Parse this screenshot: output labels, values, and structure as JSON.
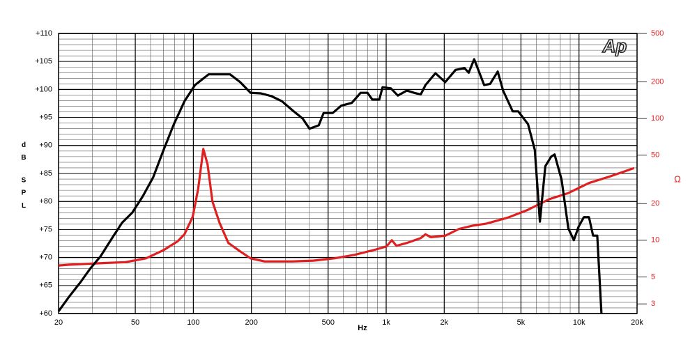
{
  "chart_data": {
    "type": "line",
    "xlabel": "Hz",
    "ylabel": "dB SPL",
    "y2label": "Ω",
    "annotation": "Ap",
    "xscale": "log",
    "y2scale": "log",
    "grid": true,
    "xlim": [
      20,
      20000
    ],
    "ylim": [
      60,
      110
    ],
    "y2lim": [
      2.5,
      500
    ],
    "xticks": [
      20,
      50,
      100,
      200,
      500,
      {
        "value": 1000,
        "label": "1k"
      },
      {
        "value": 2000,
        "label": "2k"
      },
      {
        "value": 5000,
        "label": "5k"
      },
      {
        "value": 10000,
        "label": "10k"
      },
      {
        "value": 20000,
        "label": "20k"
      }
    ],
    "yticks": [
      {
        "value": 60,
        "label": "+60"
      },
      {
        "value": 65,
        "label": "+65"
      },
      {
        "value": 70,
        "label": "+70"
      },
      {
        "value": 75,
        "label": "+75"
      },
      {
        "value": 80,
        "label": "+80"
      },
      {
        "value": 85,
        "label": "+85"
      },
      {
        "value": 90,
        "label": "+90"
      },
      {
        "value": 95,
        "label": "+95"
      },
      {
        "value": 100,
        "label": "+100"
      },
      {
        "value": 105,
        "label": "+105"
      },
      {
        "value": 110,
        "label": "+110"
      }
    ],
    "y2ticks": [
      3,
      5,
      10,
      20,
      50,
      100,
      200,
      500
    ],
    "series": [
      {
        "name": "SPL",
        "color": "#000000",
        "axis": "y",
        "x": [
          20,
          22.8,
          26,
          29.3,
          33,
          37.6,
          42.7,
          48.2,
          54.6,
          61.9,
          70.1,
          79.3,
          90,
          102,
          120,
          155,
          175,
          198,
          224,
          254,
          288,
          326,
          369,
          400,
          447,
          474,
          528,
          585,
          663,
          737,
          800,
          848,
          921,
          958,
          1058,
          1150,
          1280,
          1394,
          1511,
          1600,
          1800,
          2025,
          2290,
          2550,
          2680,
          2860,
          3220,
          3460,
          3790,
          4040,
          4530,
          4840,
          5440,
          5900,
          6270,
          6690,
          7170,
          7470,
          8120,
          8800,
          9400,
          9950,
          10600,
          11260,
          11830,
          12440,
          13070
        ],
        "values": [
          60.4,
          63.1,
          65.6,
          68.1,
          70.2,
          73.3,
          76.2,
          78,
          80.9,
          84.3,
          89.2,
          93.8,
          97.9,
          100.8,
          102.7,
          102.7,
          101.3,
          99.4,
          99.3,
          98.8,
          97.9,
          96.3,
          94.8,
          93,
          93.6,
          95.8,
          95.8,
          97.1,
          97.6,
          99.4,
          99.4,
          98.2,
          98.2,
          100.4,
          100.2,
          98.9,
          99.8,
          99.4,
          99.1,
          100.8,
          102.9,
          101.3,
          103.5,
          103.8,
          103,
          105.4,
          100.8,
          101,
          103.2,
          99.8,
          96.1,
          96.1,
          93.8,
          89.2,
          76.4,
          86.3,
          88,
          88.4,
          83.9,
          75.2,
          73.1,
          75.5,
          77.2,
          77.2,
          73.9,
          73.9,
          60
        ]
      },
      {
        "name": "Impedance",
        "color": "#e02020",
        "axis": "y2",
        "x": [
          20,
          22.8,
          34.6,
          44.3,
          56.8,
          70.1,
          82.9,
          90,
          99.3,
          106,
          112.7,
          118.5,
          125.6,
          136.5,
          151.9,
          175,
          198,
          234,
          326,
          419,
          538,
          690,
          887,
          1003,
          1070,
          1130,
          1280,
          1511,
          1600,
          1700,
          2025,
          2390,
          2820,
          3310,
          4250,
          5440,
          6990,
          8800,
          11260,
          14600,
          19300
        ],
        "values": [
          6.2,
          6.3,
          6.5,
          6.6,
          7.1,
          8.3,
          9.8,
          11.2,
          15.6,
          26.6,
          56.2,
          42,
          20.8,
          14,
          9.5,
          8.1,
          7.1,
          6.7,
          6.7,
          6.8,
          7.1,
          7.6,
          8.4,
          8.9,
          10,
          9,
          9.5,
          10.4,
          11.2,
          10.6,
          10.9,
          12.4,
          13.2,
          13.7,
          15.3,
          17.8,
          21.7,
          24.4,
          29.5,
          33.6,
          39.2
        ]
      }
    ]
  }
}
